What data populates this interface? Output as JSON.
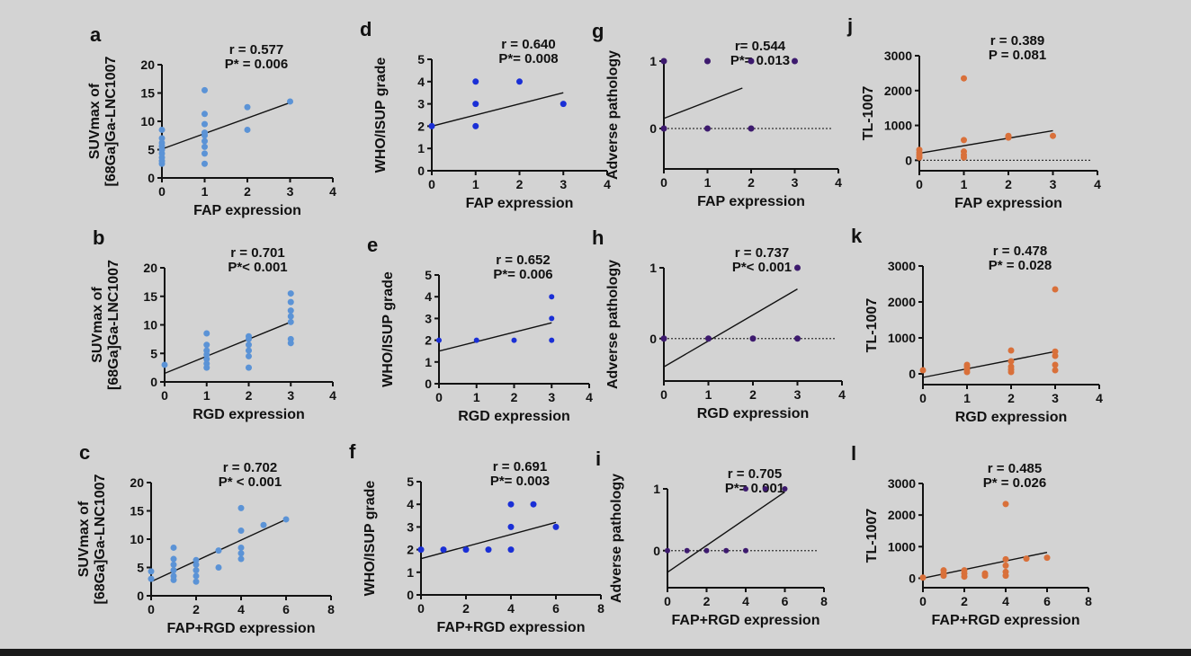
{
  "colors": {
    "light_blue": "#5b93d6",
    "blue": "#1a2fd6",
    "purple": "#3d1a6e",
    "orange": "#d9703a",
    "background": "#d3d3d3"
  },
  "chart_data": [
    {
      "id": "a",
      "type": "scatter",
      "label": "a",
      "r_text": "r = 0.577",
      "p_text": "P* = 0.006",
      "xlabel": "FAP expression",
      "ylabel": [
        "SUVmax of",
        "[68Ga]Ga-LNC1007"
      ],
      "xlim": [
        0,
        4
      ],
      "ylim": [
        0,
        20
      ],
      "xticks": [
        0,
        1,
        2,
        3,
        4
      ],
      "yticks": [
        0,
        5,
        10,
        15,
        20
      ],
      "color": "light_blue",
      "marker_r": 3.5,
      "points": [
        [
          0,
          2.5
        ],
        [
          0,
          3
        ],
        [
          0,
          3.6
        ],
        [
          0,
          4.3
        ],
        [
          0,
          5
        ],
        [
          0,
          5.6
        ],
        [
          0,
          6.2
        ],
        [
          0,
          7
        ],
        [
          0,
          8.5
        ],
        [
          1,
          2.5
        ],
        [
          1,
          4.3
        ],
        [
          1,
          5.5
        ],
        [
          1,
          6.5
        ],
        [
          1,
          7.5
        ],
        [
          1,
          8
        ],
        [
          1,
          9.5
        ],
        [
          1,
          11.3
        ],
        [
          1,
          15.5
        ],
        [
          2,
          8.5
        ],
        [
          2,
          12.5
        ],
        [
          3,
          13.5
        ]
      ],
      "line": [
        [
          0,
          5.1
        ],
        [
          3,
          13.3
        ]
      ]
    },
    {
      "id": "d",
      "type": "scatter",
      "label": "d",
      "r_text": "r = 0.640",
      "p_text": "P*= 0.008",
      "xlabel": "FAP expression",
      "ylabel": [
        "WHO/ISUP grade"
      ],
      "xlim": [
        0,
        4
      ],
      "ylim": [
        0,
        5
      ],
      "xticks": [
        0,
        1,
        2,
        3,
        4
      ],
      "yticks": [
        0,
        1,
        2,
        3,
        4,
        5
      ],
      "color": "blue",
      "marker_r": 3.5,
      "points": [
        [
          0,
          2
        ],
        [
          1,
          2
        ],
        [
          1,
          3
        ],
        [
          1,
          4
        ],
        [
          2,
          4
        ],
        [
          3,
          3
        ]
      ],
      "line": [
        [
          0,
          2
        ],
        [
          3,
          3.5
        ]
      ]
    },
    {
      "id": "g",
      "type": "scatter",
      "label": "g",
      "r_text": "r= 0.544",
      "p_text": "P*= 0.013",
      "xlabel": "FAP expression",
      "ylabel": [
        "Adverse pathology"
      ],
      "xlim": [
        0,
        4
      ],
      "ylim": [
        -0.6,
        1
      ],
      "xticks": [
        0,
        1,
        2,
        3,
        4
      ],
      "yticks": [
        0,
        1
      ],
      "color": "purple",
      "marker_r": 3.5,
      "zero_line": true,
      "points": [
        [
          0,
          0
        ],
        [
          0,
          1
        ],
        [
          1,
          0
        ],
        [
          1,
          1
        ],
        [
          2,
          0
        ],
        [
          2,
          1
        ],
        [
          3,
          1
        ]
      ],
      "line": [
        [
          0,
          0.15
        ],
        [
          1.8,
          0.6
        ]
      ]
    },
    {
      "id": "j",
      "type": "scatter",
      "label": "j",
      "r_text": "r = 0.389",
      "p_text": "P = 0.081",
      "xlabel": "FAP expression",
      "ylabel": [
        "TL-1007"
      ],
      "xlim": [
        0,
        4
      ],
      "ylim": [
        -300,
        3000
      ],
      "xticks": [
        0,
        1,
        2,
        3,
        4
      ],
      "yticks": [
        0,
        1000,
        2000,
        3000
      ],
      "color": "orange",
      "marker_r": 3.5,
      "zero_line": true,
      "points": [
        [
          0,
          80
        ],
        [
          0,
          150
        ],
        [
          0,
          220
        ],
        [
          0,
          300
        ],
        [
          1,
          80
        ],
        [
          1,
          150
        ],
        [
          1,
          250
        ],
        [
          1,
          580
        ],
        [
          1,
          2350
        ],
        [
          2,
          650
        ],
        [
          2,
          700
        ],
        [
          3,
          700
        ]
      ],
      "line": [
        [
          0,
          200
        ],
        [
          3,
          850
        ]
      ]
    },
    {
      "id": "b",
      "type": "scatter",
      "label": "b",
      "r_text": "r = 0.701",
      "p_text": "P*< 0.001",
      "xlabel": "RGD expression",
      "ylabel": [
        "SUVmax of",
        "[68Ga]Ga-LNC1007"
      ],
      "xlim": [
        0,
        4
      ],
      "ylim": [
        0,
        20
      ],
      "xticks": [
        0,
        1,
        2,
        3,
        4
      ],
      "yticks": [
        0,
        5,
        10,
        15,
        20
      ],
      "color": "light_blue",
      "marker_r": 3.5,
      "points": [
        [
          0,
          3
        ],
        [
          1,
          2.5
        ],
        [
          1,
          3.2
        ],
        [
          1,
          4
        ],
        [
          1,
          4.8
        ],
        [
          1,
          5.5
        ],
        [
          1,
          6.5
        ],
        [
          1,
          8.5
        ],
        [
          2,
          2.5
        ],
        [
          2,
          4.5
        ],
        [
          2,
          5.5
        ],
        [
          2,
          6.5
        ],
        [
          2,
          7.5
        ],
        [
          2,
          8
        ],
        [
          3,
          6.8
        ],
        [
          3,
          7.5
        ],
        [
          3,
          10.5
        ],
        [
          3,
          11.5
        ],
        [
          3,
          12.5
        ],
        [
          3,
          14
        ],
        [
          3,
          15.5
        ]
      ],
      "line": [
        [
          0,
          1.5
        ],
        [
          3,
          10.5
        ]
      ]
    },
    {
      "id": "e",
      "type": "scatter",
      "label": "e",
      "r_text": "r = 0.652",
      "p_text": "P*= 0.006",
      "xlabel": "RGD expression",
      "ylabel": [
        "WHO/ISUP grade"
      ],
      "xlim": [
        0,
        4
      ],
      "ylim": [
        0,
        5
      ],
      "xticks": [
        0,
        1,
        2,
        3,
        4
      ],
      "yticks": [
        0,
        1,
        2,
        3,
        4,
        5
      ],
      "color": "blue",
      "marker_r": 3,
      "points": [
        [
          0,
          2
        ],
        [
          1,
          2
        ],
        [
          2,
          2
        ],
        [
          3,
          2
        ],
        [
          3,
          3
        ],
        [
          3,
          4
        ]
      ],
      "line": [
        [
          0,
          1.5
        ],
        [
          3,
          2.8
        ]
      ]
    },
    {
      "id": "h",
      "type": "scatter",
      "label": "h",
      "r_text": "r = 0.737",
      "p_text": "P*< 0.001",
      "xlabel": "RGD expression",
      "ylabel": [
        "Adverse pathology"
      ],
      "xlim": [
        0,
        4
      ],
      "ylim": [
        -0.6,
        1
      ],
      "xticks": [
        0,
        1,
        2,
        3,
        4
      ],
      "yticks": [
        0,
        1
      ],
      "color": "purple",
      "marker_r": 3.5,
      "zero_line": true,
      "points": [
        [
          0,
          0
        ],
        [
          1,
          0
        ],
        [
          2,
          0
        ],
        [
          3,
          0
        ],
        [
          3,
          1
        ]
      ],
      "line": [
        [
          0,
          -0.4
        ],
        [
          3,
          0.7
        ]
      ]
    },
    {
      "id": "k",
      "type": "scatter",
      "label": "k",
      "r_text": "r = 0.478",
      "p_text": "P* = 0.028",
      "xlabel": "RGD expression",
      "ylabel": [
        "TL-1007"
      ],
      "xlim": [
        0,
        4
      ],
      "ylim": [
        -300,
        3000
      ],
      "xticks": [
        0,
        1,
        2,
        3,
        4
      ],
      "yticks": [
        0,
        1000,
        2000,
        3000
      ],
      "color": "orange",
      "marker_r": 3.5,
      "points": [
        [
          0,
          100
        ],
        [
          1,
          50
        ],
        [
          1,
          120
        ],
        [
          1,
          200
        ],
        [
          1,
          250
        ],
        [
          2,
          50
        ],
        [
          2,
          120
        ],
        [
          2,
          200
        ],
        [
          2,
          350
        ],
        [
          2,
          650
        ],
        [
          3,
          100
        ],
        [
          3,
          250
        ],
        [
          3,
          500
        ],
        [
          3,
          620
        ],
        [
          3,
          2350
        ]
      ],
      "line": [
        [
          0,
          -100
        ],
        [
          3,
          620
        ]
      ]
    },
    {
      "id": "c",
      "type": "scatter",
      "label": "c",
      "r_text": "r = 0.702",
      "p_text": "P* < 0.001",
      "xlabel": "FAP+RGD expression",
      "ylabel": [
        "SUVmax of",
        "[68Ga]Ga-LNC1007"
      ],
      "xlim": [
        0,
        8
      ],
      "ylim": [
        0,
        20
      ],
      "xticks": [
        0,
        2,
        4,
        6,
        8
      ],
      "yticks": [
        0,
        5,
        10,
        15,
        20
      ],
      "color": "light_blue",
      "marker_r": 3.5,
      "points": [
        [
          0,
          3
        ],
        [
          0,
          4.3
        ],
        [
          1,
          2.8
        ],
        [
          1,
          3.5
        ],
        [
          1,
          4.5
        ],
        [
          1,
          5.5
        ],
        [
          1,
          6.5
        ],
        [
          1,
          8.5
        ],
        [
          2,
          2.5
        ],
        [
          2,
          3.5
        ],
        [
          2,
          4.5
        ],
        [
          2,
          5.5
        ],
        [
          2,
          6.3
        ],
        [
          3,
          5
        ],
        [
          3,
          8
        ],
        [
          4,
          6.5
        ],
        [
          4,
          7.5
        ],
        [
          4,
          8.5
        ],
        [
          4,
          11.5
        ],
        [
          4,
          15.5
        ],
        [
          5,
          12.5
        ],
        [
          6,
          13.5
        ]
      ],
      "line": [
        [
          0,
          2.5
        ],
        [
          6,
          13.5
        ]
      ]
    },
    {
      "id": "f",
      "type": "scatter",
      "label": "f",
      "r_text": "r = 0.691",
      "p_text": "P*= 0.003",
      "xlabel": "FAP+RGD expression",
      "ylabel": [
        "WHO/ISUP grade"
      ],
      "xlim": [
        0,
        8
      ],
      "ylim": [
        0,
        5
      ],
      "xticks": [
        0,
        2,
        4,
        6,
        8
      ],
      "yticks": [
        0,
        1,
        2,
        3,
        4,
        5
      ],
      "color": "blue",
      "marker_r": 3.5,
      "points": [
        [
          0,
          2
        ],
        [
          1,
          2
        ],
        [
          2,
          2
        ],
        [
          3,
          2
        ],
        [
          4,
          2
        ],
        [
          4,
          3
        ],
        [
          4,
          4
        ],
        [
          5,
          4
        ],
        [
          6,
          3
        ]
      ],
      "line": [
        [
          0,
          1.6
        ],
        [
          6,
          3.2
        ]
      ]
    },
    {
      "id": "i",
      "type": "scatter",
      "label": "i",
      "r_text": "r = 0.705",
      "p_text": "P*= 0.001",
      "xlabel": "FAP+RGD expression",
      "ylabel": [
        "Adverse pathology"
      ],
      "xlim": [
        0,
        8
      ],
      "ylim": [
        -0.6,
        1
      ],
      "xticks": [
        0,
        2,
        4,
        6,
        8
      ],
      "yticks": [
        0,
        1
      ],
      "color": "purple",
      "marker_r": 3,
      "zero_line": true,
      "points": [
        [
          0,
          0
        ],
        [
          1,
          0
        ],
        [
          2,
          0
        ],
        [
          3,
          0
        ],
        [
          4,
          0
        ],
        [
          4,
          1
        ],
        [
          5,
          1
        ],
        [
          6,
          1
        ]
      ],
      "line": [
        [
          0,
          -0.35
        ],
        [
          6,
          0.95
        ]
      ]
    },
    {
      "id": "l",
      "type": "scatter",
      "label": "l",
      "r_text": "r = 0.485",
      "p_text": "P* = 0.026",
      "xlabel": "FAP+RGD expression",
      "ylabel": [
        "TL-1007"
      ],
      "xlim": [
        0,
        8
      ],
      "ylim": [
        -300,
        3000
      ],
      "xticks": [
        0,
        2,
        4,
        6,
        8
      ],
      "yticks": [
        0,
        1000,
        2000,
        3000
      ],
      "color": "orange",
      "marker_r": 3.5,
      "points": [
        [
          0,
          20
        ],
        [
          1,
          80
        ],
        [
          1,
          150
        ],
        [
          1,
          250
        ],
        [
          2,
          50
        ],
        [
          2,
          150
        ],
        [
          2,
          250
        ],
        [
          3,
          80
        ],
        [
          3,
          150
        ],
        [
          4,
          80
        ],
        [
          4,
          200
        ],
        [
          4,
          400
        ],
        [
          4,
          600
        ],
        [
          4,
          2350
        ],
        [
          5,
          620
        ],
        [
          6,
          650
        ]
      ],
      "line": [
        [
          0,
          0
        ],
        [
          6,
          820
        ]
      ]
    }
  ]
}
